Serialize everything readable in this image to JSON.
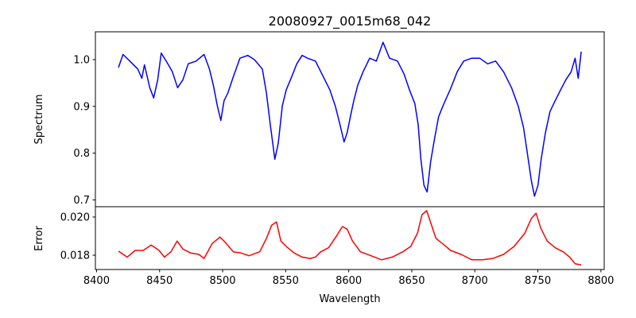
{
  "chart_data": [
    {
      "type": "line",
      "title": "20080927_0015m68_042",
      "xlabel": "",
      "ylabel": "Spectrum",
      "xlim": [
        8399.1,
        8802.6
      ],
      "ylim": [
        0.6855,
        1.0595
      ],
      "xticks": [
        8400,
        8450,
        8500,
        8550,
        8600,
        8650,
        8700,
        8750,
        8800
      ],
      "yticks": [
        0.7,
        0.8,
        0.9,
        1.0
      ],
      "ytick_labels": [
        "0.7",
        "0.8",
        "0.9",
        "1.0"
      ],
      "grid": false,
      "series": [
        {
          "name": "Spectrum",
          "color": "#0000ff",
          "x": [
            8417.4,
            8421,
            8426.4,
            8432.7,
            8435.9,
            8438,
            8442.2,
            8445.3,
            8448.5,
            8451.3,
            8455.9,
            8460.1,
            8464.3,
            8468.5,
            8472.7,
            8479,
            8485.3,
            8489.5,
            8492.6,
            8495.8,
            8498.6,
            8501.1,
            8504.2,
            8508.4,
            8513.7,
            8520,
            8525.2,
            8531.5,
            8534.7,
            8537.8,
            8541.4,
            8544.1,
            8547.3,
            8550.4,
            8554.7,
            8558.8,
            8563,
            8567.3,
            8573.6,
            8579.9,
            8585.1,
            8589.3,
            8592.5,
            8596.3,
            8598.8,
            8601.3,
            8604,
            8607.2,
            8611.4,
            8616.6,
            8621.9,
            8627.2,
            8632.4,
            8638.7,
            8643.9,
            8648.2,
            8652.4,
            8655.1,
            8657.2,
            8659.7,
            8662.2,
            8665,
            8668.2,
            8671.3,
            8675.5,
            8680.8,
            8686,
            8691.2,
            8697.6,
            8703.9,
            8710.2,
            8716.5,
            8722.8,
            8729.1,
            8734.4,
            8738.6,
            8741.7,
            8744.8,
            8747.3,
            8750.1,
            8752.6,
            8756,
            8759.6,
            8763.7,
            8768,
            8772.2,
            8776.4,
            8779.5,
            8782,
            8784.4
          ],
          "y": [
            0.983,
            1.011,
            0.997,
            0.98,
            0.96,
            0.989,
            0.94,
            0.918,
            0.957,
            1.014,
            0.994,
            0.974,
            0.94,
            0.957,
            0.991,
            0.997,
            1.011,
            0.98,
            0.946,
            0.901,
            0.87,
            0.912,
            0.929,
            0.963,
            1.003,
            1.009,
            1.0,
            0.98,
            0.929,
            0.861,
            0.787,
            0.821,
            0.901,
            0.935,
            0.963,
            0.991,
            1.009,
            1.003,
            0.997,
            0.963,
            0.935,
            0.901,
            0.867,
            0.824,
            0.844,
            0.878,
            0.912,
            0.946,
            0.974,
            1.003,
            0.997,
            1.037,
            1.003,
            0.997,
            0.969,
            0.935,
            0.906,
            0.861,
            0.787,
            0.731,
            0.717,
            0.782,
            0.833,
            0.878,
            0.906,
            0.938,
            0.974,
            0.997,
            1.003,
            1.003,
            0.991,
            0.997,
            0.974,
            0.94,
            0.901,
            0.855,
            0.799,
            0.742,
            0.708,
            0.731,
            0.787,
            0.844,
            0.889,
            0.912,
            0.935,
            0.957,
            0.974,
            1.003,
            0.96,
            1.017
          ]
        }
      ]
    },
    {
      "type": "line",
      "title": "",
      "xlabel": "Wavelength",
      "ylabel": "Error",
      "xlim": [
        8399.1,
        8802.6
      ],
      "ylim": [
        0.01725,
        0.02054
      ],
      "xticks": [
        8400,
        8450,
        8500,
        8550,
        8600,
        8650,
        8700,
        8750,
        8800
      ],
      "xtick_labels": [
        "8400",
        "8450",
        "8500",
        "8550",
        "8600",
        "8650",
        "8700",
        "8750",
        "8800"
      ],
      "yticks": [
        0.018,
        0.02
      ],
      "ytick_labels": [
        "0.018",
        "0.020"
      ],
      "grid": false,
      "series": [
        {
          "name": "Error",
          "color": "#ff0000",
          "x": [
            8417.4,
            8424.3,
            8430.6,
            8437,
            8443.3,
            8449.6,
            8453.8,
            8459,
            8463.9,
            8468.5,
            8474.8,
            8481.1,
            8485.3,
            8491.6,
            8497.9,
            8502.1,
            8508.4,
            8514.7,
            8521,
            8529.4,
            8534.7,
            8538.9,
            8542.7,
            8546.2,
            8550.4,
            8556.8,
            8563.1,
            8569.4,
            8573.6,
            8577.8,
            8584.1,
            8590.4,
            8595,
            8598.8,
            8603,
            8609.3,
            8617.7,
            8626.1,
            8634.5,
            8642.9,
            8649.2,
            8654.5,
            8658.1,
            8661.8,
            8665,
            8669.2,
            8674.5,
            8680.8,
            8689.2,
            8697.6,
            8706,
            8714.4,
            8722.8,
            8731.2,
            8739.6,
            8744.8,
            8748.6,
            8752.2,
            8757.4,
            8763.7,
            8770,
            8775.3,
            8779.5,
            8784.4
          ],
          "y": [
            0.01821,
            0.0179,
            0.01825,
            0.01825,
            0.01853,
            0.01825,
            0.0179,
            0.01818,
            0.01874,
            0.01832,
            0.01811,
            0.01804,
            0.01783,
            0.0186,
            0.01895,
            0.01867,
            0.01818,
            0.01811,
            0.01797,
            0.01818,
            0.01888,
            0.01957,
            0.01974,
            0.01874,
            0.01846,
            0.01811,
            0.0179,
            0.01783,
            0.0179,
            0.01818,
            0.01839,
            0.01901,
            0.0195,
            0.01936,
            0.01874,
            0.01818,
            0.01797,
            0.01776,
            0.0179,
            0.01818,
            0.01846,
            0.01915,
            0.02012,
            0.02033,
            0.01971,
            0.01888,
            0.0186,
            0.01825,
            0.01804,
            0.01776,
            0.01776,
            0.01783,
            0.01804,
            0.01846,
            0.01915,
            0.01992,
            0.0202,
            0.01943,
            0.01874,
            0.01839,
            0.01818,
            0.0179,
            0.01755,
            0.01749
          ]
        }
      ]
    }
  ]
}
